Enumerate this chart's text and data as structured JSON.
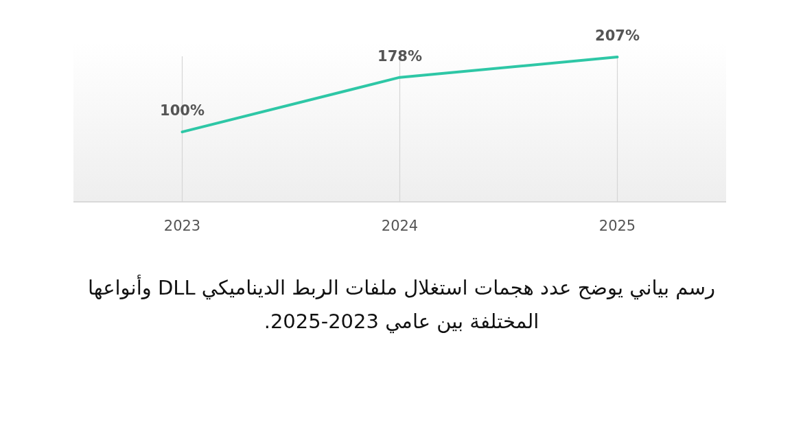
{
  "chart_data": {
    "type": "line",
    "title": "رسم بياني يوضح عدد هجمات استغلال ملفات الربط الديناميكي DLL وأنواعها المختلفة بين عامي 2023-2025.",
    "categories": [
      "2023",
      "2024",
      "2025"
    ],
    "series": [
      {
        "color": "#2ec7a6",
        "values": [
          100,
          178,
          207
        ],
        "value_labels": [
          "100%",
          "178%",
          "207%"
        ]
      }
    ],
    "grid": "x",
    "marker": "none",
    "line_style": "solid"
  }
}
